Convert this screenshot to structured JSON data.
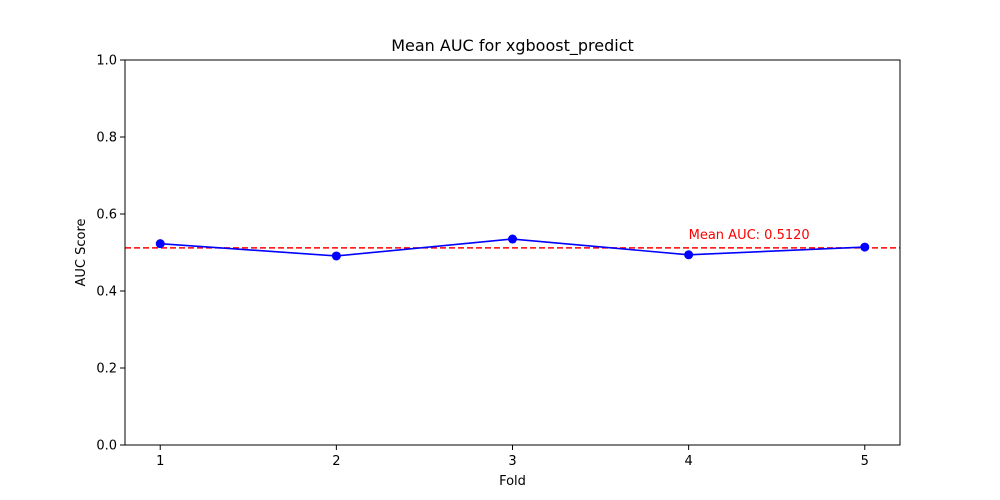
{
  "chart_data": {
    "type": "line",
    "title": "Mean AUC for xgboost_predict",
    "xlabel": "Fold",
    "ylabel": "AUC Score",
    "x": [
      1,
      2,
      3,
      4,
      5
    ],
    "x_tick_labels": [
      "1",
      "2",
      "3",
      "4",
      "5"
    ],
    "series": [
      {
        "values": [
          0.523,
          0.491,
          0.535,
          0.494,
          0.514
        ],
        "color": "#0000ff",
        "marker": "circle"
      }
    ],
    "mean_line": {
      "value": 0.512,
      "color": "#ff0000",
      "style": "dashed"
    },
    "annotation": {
      "text": "Mean AUC: 0.5120",
      "x": 4,
      "y": 0.535,
      "color": "#ff0000"
    },
    "xlim": [
      0.8,
      5.2
    ],
    "ylim": [
      0.0,
      1.0
    ],
    "y_ticks": [
      0.0,
      0.2,
      0.4,
      0.6,
      0.8,
      1.0
    ],
    "y_tick_labels": [
      "0.0",
      "0.2",
      "0.4",
      "0.6",
      "0.8",
      "1.0"
    ],
    "grid": false,
    "legend": "none"
  }
}
